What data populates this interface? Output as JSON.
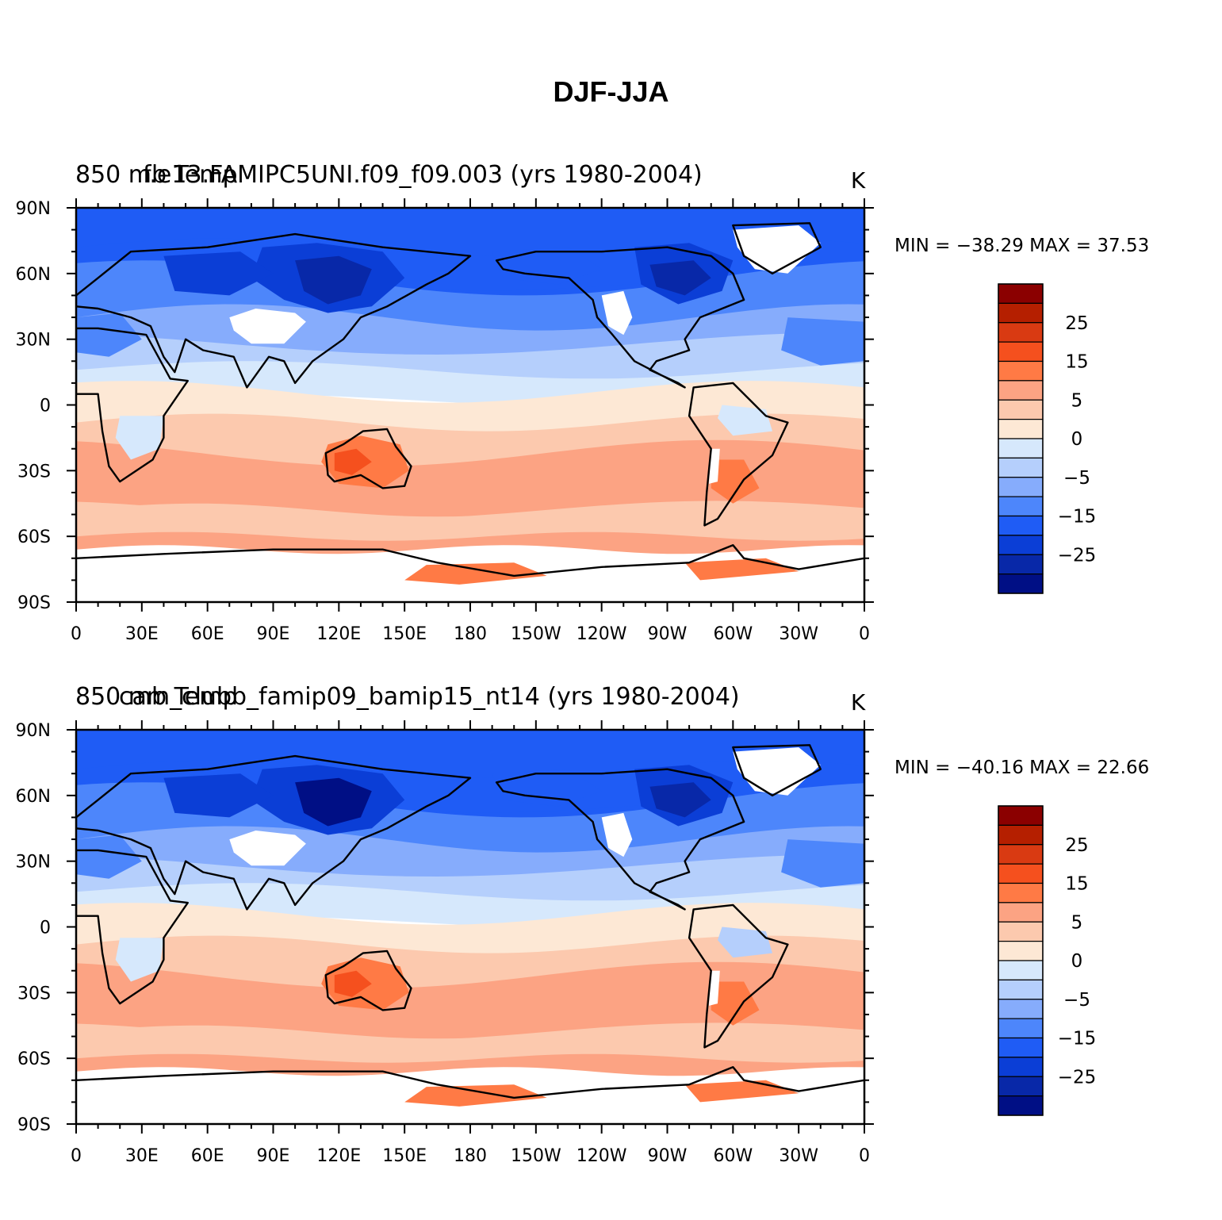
{
  "title": "DJF-JJA",
  "panels": [
    {
      "label_left": "850 mb Temp",
      "label_center": "f.e13.FAMIPC5UNI.f09_f09.003 (yrs 1980-2004)",
      "units": "K",
      "minmax": "MIN = −38.29  MAX =   37.53",
      "variant": "a"
    },
    {
      "label_left": "850 mb Temp",
      "label_center": "cam_clubb_famip09_bamip15_nt14 (yrs 1980-2004)",
      "units": "K",
      "minmax": "MIN = −40.16  MAX =   22.66",
      "variant": "b"
    }
  ],
  "lon_labels": [
    "0",
    "30E",
    "60E",
    "90E",
    "120E",
    "150E",
    "180",
    "150W",
    "120W",
    "90W",
    "60W",
    "30W",
    "0"
  ],
  "lat_labels": [
    "90N",
    "60N",
    "30N",
    "0",
    "30S",
    "60S",
    "90S"
  ],
  "colorbar": {
    "labels": [
      "25",
      "15",
      "5",
      "0",
      "−5",
      "−15",
      "−25"
    ],
    "colors": [
      "#8b0000",
      "#b51f00",
      "#d93a12",
      "#f5501e",
      "#ff7a45",
      "#fca383",
      "#fcc9ae",
      "#fde8d5",
      "#d6e8fc",
      "#b5cffc",
      "#86acfc",
      "#4d86fb",
      "#1f5cf5",
      "#0b3ed6",
      "#0828a8",
      "#000f85"
    ]
  },
  "legend_colors": {
    "land_missing": "#ffffff",
    "coastline": "#000000"
  }
}
